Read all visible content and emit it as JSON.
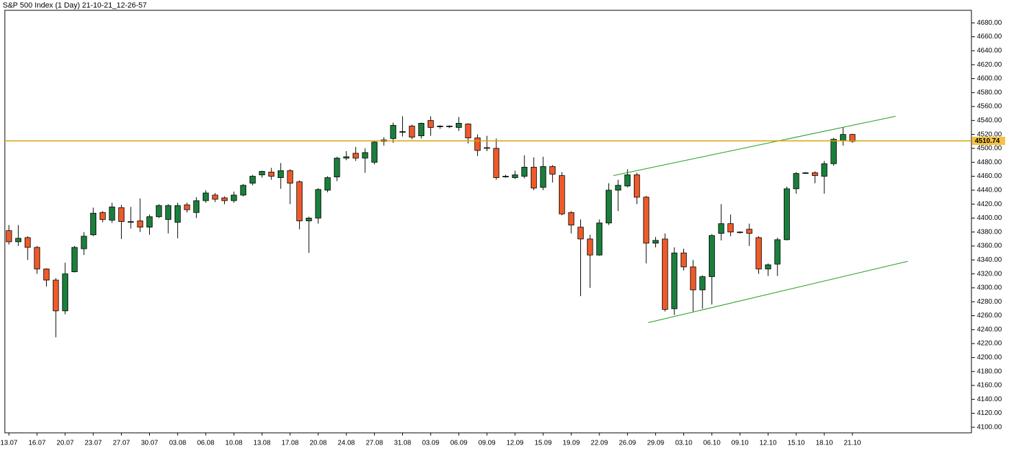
{
  "chart_data": {
    "type": "candlestick",
    "title": "S&P 500 Index (1 Day) 21-10-21_12-26-57",
    "categories": [
      "13.07",
      null,
      null,
      "16.07",
      null,
      null,
      "20.07",
      null,
      null,
      "23.07",
      null,
      null,
      "27.07",
      null,
      null,
      "30.07",
      null,
      null,
      "03.08",
      null,
      null,
      "06.08",
      null,
      null,
      "10.08",
      null,
      null,
      "13.08",
      null,
      null,
      "17.08",
      null,
      null,
      "20.08",
      null,
      null,
      "24.08",
      null,
      null,
      "27.08",
      null,
      null,
      "31.08",
      null,
      null,
      "03.09",
      null,
      null,
      "06.09",
      null,
      null,
      "09.09",
      null,
      null,
      "12.09",
      null,
      null,
      "15.09",
      null,
      null,
      "19.09",
      null,
      null,
      "22.09",
      null,
      null,
      "26.09",
      null,
      null,
      "29.09",
      null,
      null,
      "03.10",
      null,
      null,
      "06.10",
      null,
      null,
      "09.10",
      null,
      null,
      "12.10",
      null,
      null,
      "15.10",
      null,
      null,
      "18.10",
      null,
      null,
      "21.10"
    ],
    "open": [
      4382,
      4366,
      4372,
      4358,
      4327,
      4311,
      4267,
      4323,
      4356,
      4376,
      4408,
      4397,
      4415,
      4394,
      4396,
      4387,
      4402,
      4398,
      4394,
      4419,
      4408,
      4425,
      4433,
      4429,
      4425,
      4433,
      4450,
      4462,
      4466,
      4458,
      4468,
      4452,
      4396,
      4400,
      4440,
      4459,
      4486,
      4493,
      4486,
      4480,
      4510,
      4514,
      4523,
      4532,
      4518,
      4540,
      4531,
      4532,
      4530,
      4535,
      4515,
      4501,
      4500,
      4459,
      4458,
      4460,
      4473,
      4444,
      4474,
      4461,
      4408,
      4387,
      4370,
      4347,
      4393,
      4440,
      4446,
      4462,
      4430,
      4364,
      4370,
      4270,
      4350,
      4330,
      4297,
      4316,
      4378,
      4392,
      4380,
      4384,
      4372,
      4327,
      4334,
      4369,
      4442,
      4465,
      4465,
      4460,
      4478,
      4511,
      4520
    ],
    "high": [
      4390,
      4390,
      4374,
      4360,
      4328,
      4314,
      4336,
      4360,
      4380,
      4415,
      4410,
      4422,
      4419,
      4416,
      4428,
      4405,
      4420,
      4420,
      4422,
      4422,
      4430,
      4440,
      4436,
      4431,
      4438,
      4449,
      4462,
      4468,
      4472,
      4479,
      4470,
      4454,
      4402,
      4443,
      4460,
      4488,
      4496,
      4502,
      4500,
      4511,
      4516,
      4537,
      4546,
      4534,
      4537,
      4546,
      4533,
      4533,
      4545,
      4536,
      4520,
      4518,
      4514,
      4462,
      4468,
      4490,
      4487,
      4488,
      4476,
      4466,
      4410,
      4398,
      4376,
      4398,
      4450,
      4455,
      4470,
      4465,
      4432,
      4373,
      4378,
      4358,
      4356,
      4340,
      4318,
      4377,
      4420,
      4405,
      4381,
      4392,
      4374,
      4335,
      4372,
      4445,
      4466,
      4466,
      4467,
      4482,
      4515,
      4530,
      4521
    ],
    "low": [
      4362,
      4360,
      4340,
      4320,
      4302,
      4229,
      4262,
      4322,
      4347,
      4374,
      4394,
      4393,
      4370,
      4385,
      4380,
      4376,
      4400,
      4378,
      4371,
      4408,
      4400,
      4422,
      4423,
      4420,
      4422,
      4431,
      4447,
      4458,
      4455,
      4442,
      4420,
      4384,
      4350,
      4392,
      4437,
      4453,
      4483,
      4482,
      4465,
      4477,
      4504,
      4508,
      4517,
      4513,
      4514,
      4518,
      4528,
      4529,
      4525,
      4507,
      4489,
      4496,
      4455,
      4458,
      4456,
      4457,
      4440,
      4440,
      4451,
      4404,
      4378,
      4288,
      4300,
      4346,
      4390,
      4410,
      4444,
      4420,
      4335,
      4358,
      4266,
      4261,
      4325,
      4266,
      4270,
      4276,
      4368,
      4374,
      4378,
      4360,
      4320,
      4317,
      4317,
      4368,
      4435,
      4464,
      4450,
      4435,
      4475,
      4504,
      4508
    ],
    "close": [
      4366,
      4371,
      4358,
      4327,
      4311,
      4267,
      4320,
      4358,
      4374,
      4407,
      4398,
      4416,
      4395,
      4395,
      4387,
      4402,
      4418,
      4418,
      4418,
      4412,
      4425,
      4436,
      4427,
      4425,
      4433,
      4447,
      4460,
      4467,
      4460,
      4468,
      4450,
      4396,
      4400,
      4441,
      4458,
      4486,
      4488,
      4486,
      4494,
      4509,
      4512,
      4533,
      4524,
      4516,
      4536,
      4530,
      4532,
      4531,
      4536,
      4515,
      4497,
      4500,
      4458,
      4460,
      4462,
      4473,
      4443,
      4474,
      4463,
      4406,
      4390,
      4370,
      4347,
      4393,
      4440,
      4447,
      4462,
      4430,
      4364,
      4368,
      4269,
      4350,
      4330,
      4297,
      4316,
      4375,
      4392,
      4380,
      4379,
      4378,
      4327,
      4333,
      4369,
      4442,
      4464,
      4465,
      4461,
      4478,
      4513,
      4520,
      4510
    ],
    "up_color": "#1a7f3c",
    "down_color": "#ee5a2a",
    "xlim": [
      -0.44,
      102.7
    ],
    "ylim": [
      4092,
      4698
    ],
    "yticks": [
      {
        "value": 4100,
        "label": "4100.00"
      },
      {
        "value": 4120,
        "label": "4120.00"
      },
      {
        "value": 4140,
        "label": "4140.00"
      },
      {
        "value": 4160,
        "label": "4160.00"
      },
      {
        "value": 4180,
        "label": "4180.00"
      },
      {
        "value": 4200,
        "label": "4200.00"
      },
      {
        "value": 4220,
        "label": "4220.00"
      },
      {
        "value": 4240,
        "label": "4240.00"
      },
      {
        "value": 4260,
        "label": "4260.00"
      },
      {
        "value": 4280,
        "label": "4280.00"
      },
      {
        "value": 4300,
        "label": "4300.00"
      },
      {
        "value": 4320,
        "label": "4320.00"
      },
      {
        "value": 4340,
        "label": "4340.00"
      },
      {
        "value": 4360,
        "label": "4360.00"
      },
      {
        "value": 4380,
        "label": "4380.00"
      },
      {
        "value": 4400,
        "label": "4400.00"
      },
      {
        "value": 4420,
        "label": "4420.00"
      },
      {
        "value": 4440,
        "label": "4440.00"
      },
      {
        "value": 4460,
        "label": "4460.00"
      },
      {
        "value": 4480,
        "label": "4480.00"
      },
      {
        "value": 4500,
        "label": "4500.00"
      },
      {
        "value": 4520,
        "label": "4520.00"
      },
      {
        "value": 4540,
        "label": "4540.00"
      },
      {
        "value": 4560,
        "label": "4560.00"
      },
      {
        "value": 4580,
        "label": "4580.00"
      },
      {
        "value": 4600,
        "label": "4600.00"
      },
      {
        "value": 4620,
        "label": "4620.00"
      },
      {
        "value": 4640,
        "label": "4640.00"
      },
      {
        "value": 4660,
        "label": "4660.00"
      },
      {
        "value": 4680,
        "label": "4680.00"
      }
    ],
    "hline": {
      "value": 4510.74,
      "color": "#d9a400"
    },
    "trendlines": [
      {
        "x": [
          64.5,
          94.6
        ],
        "values": [
          4461,
          4546
        ],
        "color": "#1a9a1a"
      },
      {
        "x": [
          68.2,
          95.9
        ],
        "values": [
          4250,
          4338
        ],
        "color": "#1a9a1a"
      }
    ]
  }
}
